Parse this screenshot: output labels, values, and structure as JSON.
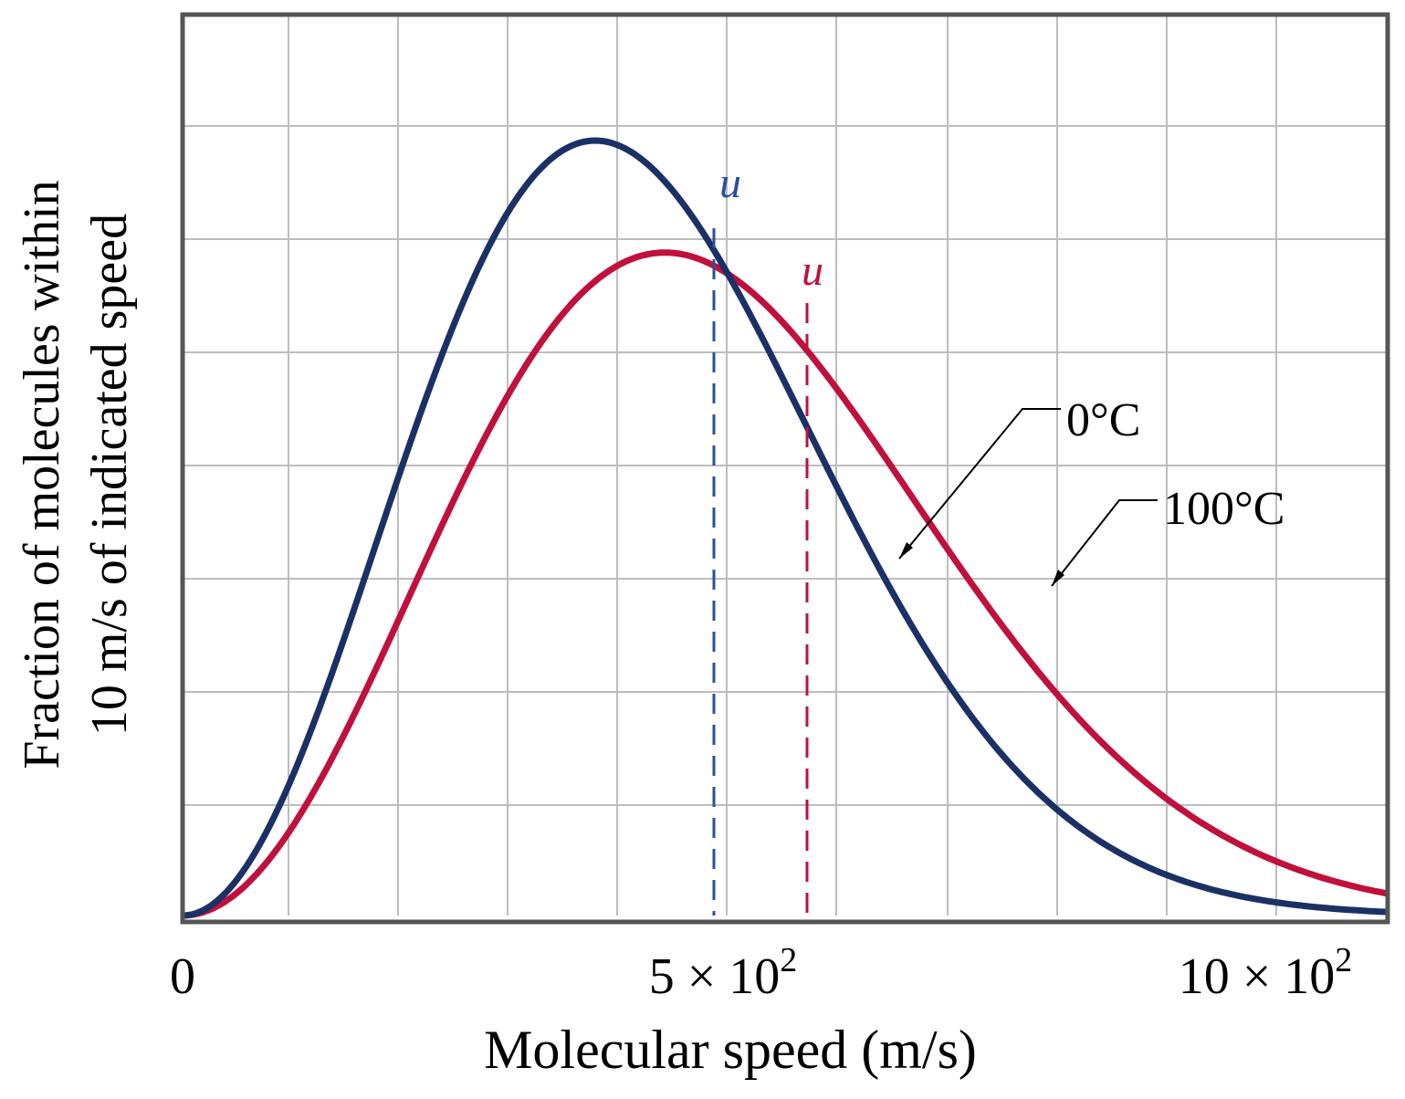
{
  "colors": {
    "series_0c": "#1b3166",
    "series_100c": "#c0103c",
    "mean_0c": "#2b4f9e",
    "grid": "#bdbdbd",
    "frame": "#555555"
  },
  "chart_data": {
    "type": "line",
    "xlabel": "Molecular speed (m/s)",
    "ylabel_lines": [
      "Fraction of molecules within",
      "10 m/s of indicated speed"
    ],
    "x_tick_labels": [
      {
        "x": 0,
        "mantissa": "0",
        "exponent": ""
      },
      {
        "x": 500,
        "mantissa": "5 × 10",
        "exponent": "2"
      },
      {
        "x": 1000,
        "mantissa": "10 × 10",
        "exponent": "2"
      }
    ],
    "xlim": [
      0,
      1100
    ],
    "ylim": [
      0,
      1
    ],
    "grid": true,
    "series": [
      {
        "name": "0°C",
        "color": "#1b3166",
        "temperature_K": 273,
        "mean_speed_label": "u",
        "mean_speed": 485
      },
      {
        "name": "100°C",
        "color": "#c0103c",
        "temperature_K": 373,
        "mean_speed_label": "u",
        "mean_speed": 570
      }
    ]
  }
}
